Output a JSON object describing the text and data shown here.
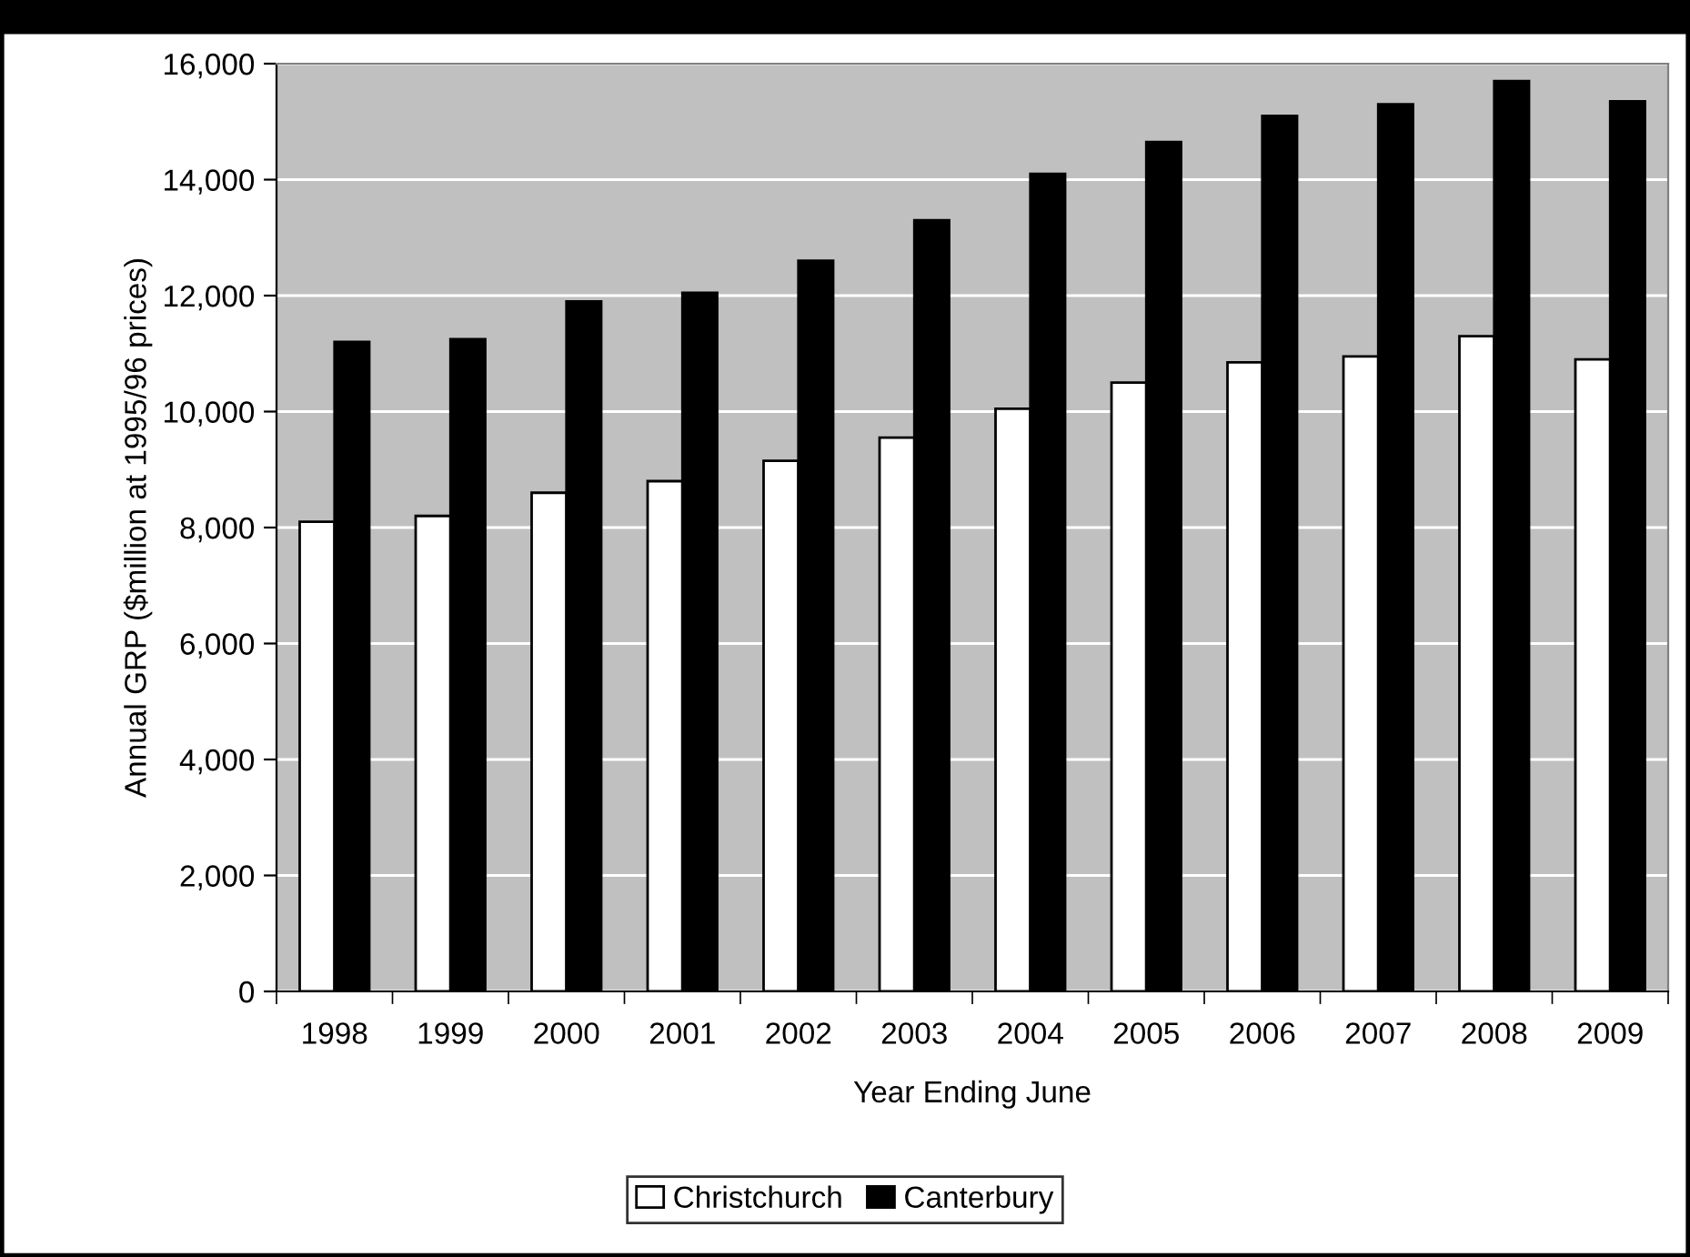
{
  "chart_data": {
    "type": "bar",
    "xlabel": "Year Ending June",
    "ylabel": "Annual GRP ($million at 1995/96 prices)",
    "categories": [
      "1998",
      "1999",
      "2000",
      "2001",
      "2002",
      "2003",
      "2004",
      "2005",
      "2006",
      "2007",
      "2008",
      "2009"
    ],
    "series": [
      {
        "name": "Christchurch",
        "color": "#ffffff",
        "values": [
          8100,
          8200,
          8600,
          8800,
          9150,
          9550,
          10050,
          10500,
          10850,
          10950,
          11300,
          10900
        ]
      },
      {
        "name": "Canterbury",
        "color": "#000000",
        "values": [
          11200,
          11250,
          11900,
          12050,
          12600,
          13300,
          14100,
          14650,
          15100,
          15300,
          15700,
          15350
        ]
      }
    ],
    "ylim": [
      0,
      16000
    ],
    "yticks": [
      {
        "value": 0,
        "label": "0"
      },
      {
        "value": 2000,
        "label": "2,000"
      },
      {
        "value": 4000,
        "label": "4,000"
      },
      {
        "value": 6000,
        "label": "6,000"
      },
      {
        "value": 8000,
        "label": "8,000"
      },
      {
        "value": 10000,
        "label": "10,000"
      },
      {
        "value": 12000,
        "label": "12,000"
      },
      {
        "value": 14000,
        "label": "14,000"
      },
      {
        "value": 16000,
        "label": "16,000"
      }
    ],
    "grid": "y",
    "legend": "bottom"
  }
}
